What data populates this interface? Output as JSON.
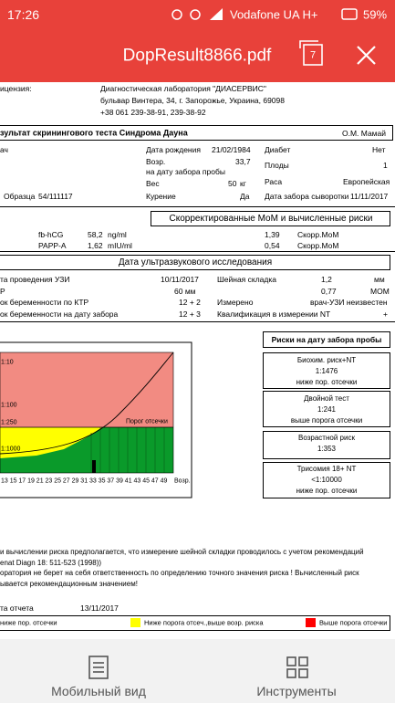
{
  "status_bar": {
    "time": "17:26",
    "carrier": "Vodafone UA H+",
    "battery": "59%"
  },
  "toolbar": {
    "title": "DopResult8866.pdf",
    "page_count": "7"
  },
  "document": {
    "license": {
      "label": "ицензия:",
      "lab": "Диагностическая лаборатория \"ДИАСЕРВИС\"",
      "address": "бульвар Винтера, 34, г. Запорожье, Украина, 69098",
      "phone": "+38 061 239-38-91, 239-38-92"
    },
    "heading": {
      "title": "зультат скринингового теста Синдрома Дауна",
      "doctor": "О.М. Мамай"
    },
    "patient": {
      "doctor_label": "ач",
      "dob_label": "Дата рождения",
      "dob": "21/02/1984",
      "diabetes_label": "Диабет",
      "diabetes": "Нет",
      "age_label": "Возр.",
      "age": "33,7",
      "fetuses_label": "Плоды",
      "fetuses": "1",
      "age_note": "на дату забора пробы",
      "weight_label": "Вес",
      "weight": "50",
      "weight_unit": "кг",
      "race_label": "Раса",
      "race": "Европейская",
      "sample_label": "Образца",
      "sample": "54/111117",
      "smoking_label": "Курение",
      "smoking": "Да",
      "serum_date_label": "Дата забора сыворотки",
      "serum_date": "11/11/2017"
    },
    "mom": {
      "title": "Скорректированные МоМ и вычисленные риски",
      "rows": [
        [
          "fb-hCG",
          "58,2",
          "ng/ml",
          "1,39",
          "Скорр.МоМ"
        ],
        [
          "PAPP-A",
          "1,62",
          "mIU/ml",
          "0,54",
          "Скорр.МоМ"
        ]
      ]
    },
    "us": {
      "title": "Дата ультразвукового исследования",
      "date_label": "та проведения УЗИ",
      "date": "10/11/2017",
      "nt_label": "Шейная складка",
      "nt": "1,2",
      "nt_unit": "мм",
      "crl_label": "Р",
      "crl": "60 мм",
      "nt_mom": "0,77",
      "nt_mom_unit": "МОМ",
      "ga_crl_label": "ок беременности по КТР",
      "ga_crl": "12 + 2",
      "measured_label": "Измерено",
      "measured": "врач-УЗИ неизвестен",
      "ga_sample_label": "ок беременности на дату забора",
      "ga_sample": "12 + 3",
      "qual_label": "Квалификация в измерении NT",
      "qual": "+"
    },
    "chart": {
      "y_labels": [
        "1:10",
        "1:100",
        "1:250",
        "1:1000"
      ],
      "x_labels": [
        "13",
        "15",
        "17",
        "19",
        "21",
        "23",
        "25",
        "27",
        "29",
        "31",
        "33",
        "35",
        "37",
        "39",
        "41",
        "43",
        "45",
        "47",
        "49"
      ],
      "x_axis_label": "Возр.",
      "cutoff_label": "Порог отсечки"
    },
    "risks": {
      "title": "Риски на дату забора пробы",
      "boxes": [
        [
          "Биохим. риск+NT",
          "1:1476",
          "ниже пор. отсечки"
        ],
        [
          "Двойной тест",
          "1:241",
          "выше порога отсечки"
        ],
        [
          "Возрастной риск",
          "1:353"
        ],
        [
          "Трисомия 18+ NT",
          "<1:10000",
          "ниже пор. отсечки"
        ]
      ]
    },
    "notes": [
      "и вычислении риска предполагается, что измерение шейной складки проводилось с учетом рекомендаций",
      "enat Diagn 18: 511-523 (1998))",
      "оратория не берет на себя ответственность по определению точного значения риска ! Вычисленный риск",
      "ывается рекомендационным значением!"
    ],
    "report": {
      "label": "та отчета",
      "date": "13/11/2017"
    },
    "legend": {
      "below": "ниже пор. отсечки",
      "middle": "Ниже порога отсеч.,выше возр. риска",
      "above": "Выше порога отсечки"
    }
  },
  "bottom_nav": {
    "mobile": "Мобильный вид",
    "tools": "Инструменты"
  }
}
